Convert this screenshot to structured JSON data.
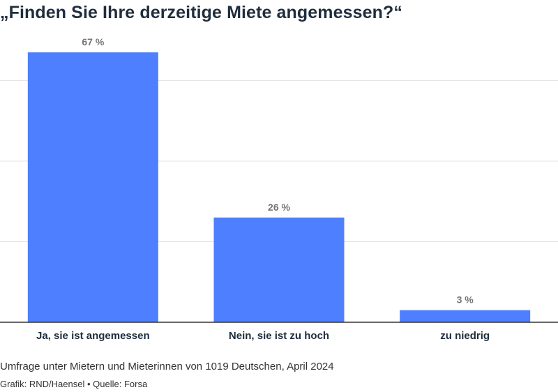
{
  "chart_data": {
    "type": "bar",
    "title": "„Finden Sie Ihre derzeitige Miete angemessen?“",
    "categories": [
      "Ja, sie ist angemessen",
      "Nein, sie ist zu hoch",
      "zu niedrig"
    ],
    "values": [
      67,
      26,
      3
    ],
    "value_labels": [
      "67 %",
      "26 %",
      "3 %"
    ],
    "xlabel": "",
    "ylabel": "",
    "ylim": [
      0,
      80
    ],
    "grid": true,
    "bar_color": "#4d7fff"
  },
  "footer": {
    "note": "Umfrage unter Mietern und Mieterinnen von 1019 Deutschen, April 2024",
    "credits": "Grafik: RND/Haensel • Quelle: Forsa"
  }
}
